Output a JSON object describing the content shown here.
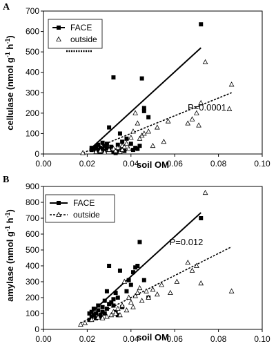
{
  "chart_data": [
    {
      "panel_label": "A",
      "type": "scatter",
      "xlabel": "soil OM",
      "ylabel": "cellulase (nmol g-1 h-1)",
      "xlim": [
        0,
        0.1
      ],
      "ylim": [
        0,
        700
      ],
      "xticks": [
        "0.00",
        "0.02",
        "0.04",
        "0.06",
        "0.08",
        "0.10"
      ],
      "yticks": [
        "0",
        "100",
        "200",
        "300",
        "400",
        "500",
        "600",
        "700"
      ],
      "annotation": "P=0.0001",
      "legend_position": "top-left",
      "series": [
        {
          "name": "FACE",
          "marker": "filled-square",
          "points": [
            [
              0.022,
              20
            ],
            [
              0.022,
              30
            ],
            [
              0.023,
              25
            ],
            [
              0.024,
              15
            ],
            [
              0.024,
              35
            ],
            [
              0.025,
              20
            ],
            [
              0.025,
              45
            ],
            [
              0.026,
              30
            ],
            [
              0.026,
              10
            ],
            [
              0.027,
              55
            ],
            [
              0.027,
              25
            ],
            [
              0.028,
              40
            ],
            [
              0.028,
              15
            ],
            [
              0.029,
              30
            ],
            [
              0.029,
              50
            ],
            [
              0.03,
              20
            ],
            [
              0.03,
              130
            ],
            [
              0.031,
              35
            ],
            [
              0.032,
              375
            ],
            [
              0.032,
              10
            ],
            [
              0.033,
              5
            ],
            [
              0.034,
              15
            ],
            [
              0.034,
              45
            ],
            [
              0.035,
              100
            ],
            [
              0.036,
              30
            ],
            [
              0.036,
              60
            ],
            [
              0.037,
              15
            ],
            [
              0.038,
              75
            ],
            [
              0.04,
              50
            ],
            [
              0.041,
              20
            ],
            [
              0.042,
              30
            ],
            [
              0.043,
              25
            ],
            [
              0.044,
              40
            ],
            [
              0.045,
              370
            ],
            [
              0.046,
              210
            ],
            [
              0.046,
              225
            ],
            [
              0.048,
              180
            ],
            [
              0.072,
              635
            ]
          ],
          "trendline": [
            [
              0.022,
              30
            ],
            [
              0.072,
              520
            ]
          ]
        },
        {
          "name": "outside",
          "marker": "open-triangle",
          "points": [
            [
              0.018,
              5
            ],
            [
              0.024,
              10
            ],
            [
              0.026,
              15
            ],
            [
              0.028,
              8
            ],
            [
              0.03,
              20
            ],
            [
              0.032,
              25
            ],
            [
              0.033,
              15
            ],
            [
              0.034,
              30
            ],
            [
              0.035,
              10
            ],
            [
              0.036,
              40
            ],
            [
              0.036,
              20
            ],
            [
              0.037,
              35
            ],
            [
              0.038,
              50
            ],
            [
              0.039,
              25
            ],
            [
              0.04,
              80
            ],
            [
              0.041,
              110
            ],
            [
              0.042,
              200
            ],
            [
              0.043,
              150
            ],
            [
              0.044,
              75
            ],
            [
              0.045,
              90
            ],
            [
              0.046,
              100
            ],
            [
              0.048,
              110
            ],
            [
              0.05,
              40
            ],
            [
              0.052,
              130
            ],
            [
              0.055,
              60
            ],
            [
              0.057,
              160
            ],
            [
              0.066,
              150
            ],
            [
              0.068,
              170
            ],
            [
              0.07,
              200
            ],
            [
              0.071,
              140
            ],
            [
              0.072,
              250
            ],
            [
              0.074,
              450
            ],
            [
              0.085,
              220
            ],
            [
              0.086,
              340
            ]
          ],
          "trendline": [
            [
              0.018,
              5
            ],
            [
              0.086,
              300
            ]
          ]
        }
      ]
    },
    {
      "panel_label": "B",
      "type": "scatter",
      "xlabel": "soil OM",
      "ylabel": "amylase (nmol g-1 h-1)",
      "xlim": [
        0,
        0.1
      ],
      "ylim": [
        0,
        900
      ],
      "xticks": [
        "0.00",
        "0.02",
        "0.04",
        "0.06",
        "0.08",
        "0.10"
      ],
      "yticks": [
        "0",
        "100",
        "200",
        "300",
        "400",
        "500",
        "600",
        "700",
        "800",
        "900"
      ],
      "annotation": "P=0.012",
      "legend_position": "top-left",
      "series": [
        {
          "name": "FACE",
          "marker": "filled-square",
          "points": [
            [
              0.021,
              100
            ],
            [
              0.021,
              60
            ],
            [
              0.022,
              80
            ],
            [
              0.022,
              110
            ],
            [
              0.023,
              90
            ],
            [
              0.023,
              130
            ],
            [
              0.024,
              70
            ],
            [
              0.024,
              100
            ],
            [
              0.025,
              120
            ],
            [
              0.025,
              150
            ],
            [
              0.026,
              80
            ],
            [
              0.026,
              90
            ],
            [
              0.027,
              110
            ],
            [
              0.027,
              140
            ],
            [
              0.028,
              100
            ],
            [
              0.028,
              180
            ],
            [
              0.029,
              130
            ],
            [
              0.029,
              240
            ],
            [
              0.03,
              160
            ],
            [
              0.03,
              400
            ],
            [
              0.031,
              170
            ],
            [
              0.032,
              150
            ],
            [
              0.032,
              190
            ],
            [
              0.033,
              230
            ],
            [
              0.033,
              110
            ],
            [
              0.034,
              200
            ],
            [
              0.034,
              90
            ],
            [
              0.035,
              370
            ],
            [
              0.036,
              140
            ],
            [
              0.038,
              240
            ],
            [
              0.039,
              310
            ],
            [
              0.04,
              280
            ],
            [
              0.041,
              360
            ],
            [
              0.042,
              390
            ],
            [
              0.043,
              400
            ],
            [
              0.044,
              550
            ],
            [
              0.046,
              310
            ],
            [
              0.048,
              200
            ],
            [
              0.072,
              700
            ]
          ],
          "trendline": [
            [
              0.021,
              95
            ],
            [
              0.072,
              735
            ]
          ]
        },
        {
          "name": "outside",
          "marker": "open-triangle",
          "points": [
            [
              0.017,
              30
            ],
            [
              0.019,
              40
            ],
            [
              0.022,
              60
            ],
            [
              0.025,
              75
            ],
            [
              0.027,
              70
            ],
            [
              0.029,
              80
            ],
            [
              0.031,
              90
            ],
            [
              0.032,
              110
            ],
            [
              0.033,
              100
            ],
            [
              0.034,
              130
            ],
            [
              0.035,
              90
            ],
            [
              0.036,
              150
            ],
            [
              0.037,
              300
            ],
            [
              0.038,
              120
            ],
            [
              0.039,
              200
            ],
            [
              0.04,
              170
            ],
            [
              0.041,
              140
            ],
            [
              0.042,
              210
            ],
            [
              0.043,
              230
            ],
            [
              0.044,
              260
            ],
            [
              0.045,
              180
            ],
            [
              0.047,
              240
            ],
            [
              0.048,
              200
            ],
            [
              0.05,
              250
            ],
            [
              0.052,
              220
            ],
            [
              0.054,
              280
            ],
            [
              0.058,
              230
            ],
            [
              0.061,
              300
            ],
            [
              0.066,
              420
            ],
            [
              0.068,
              370
            ],
            [
              0.07,
              400
            ],
            [
              0.072,
              290
            ],
            [
              0.074,
              860
            ],
            [
              0.086,
              240
            ]
          ],
          "trendline": [
            [
              0.017,
              40
            ],
            [
              0.086,
              520
            ]
          ]
        }
      ]
    }
  ]
}
